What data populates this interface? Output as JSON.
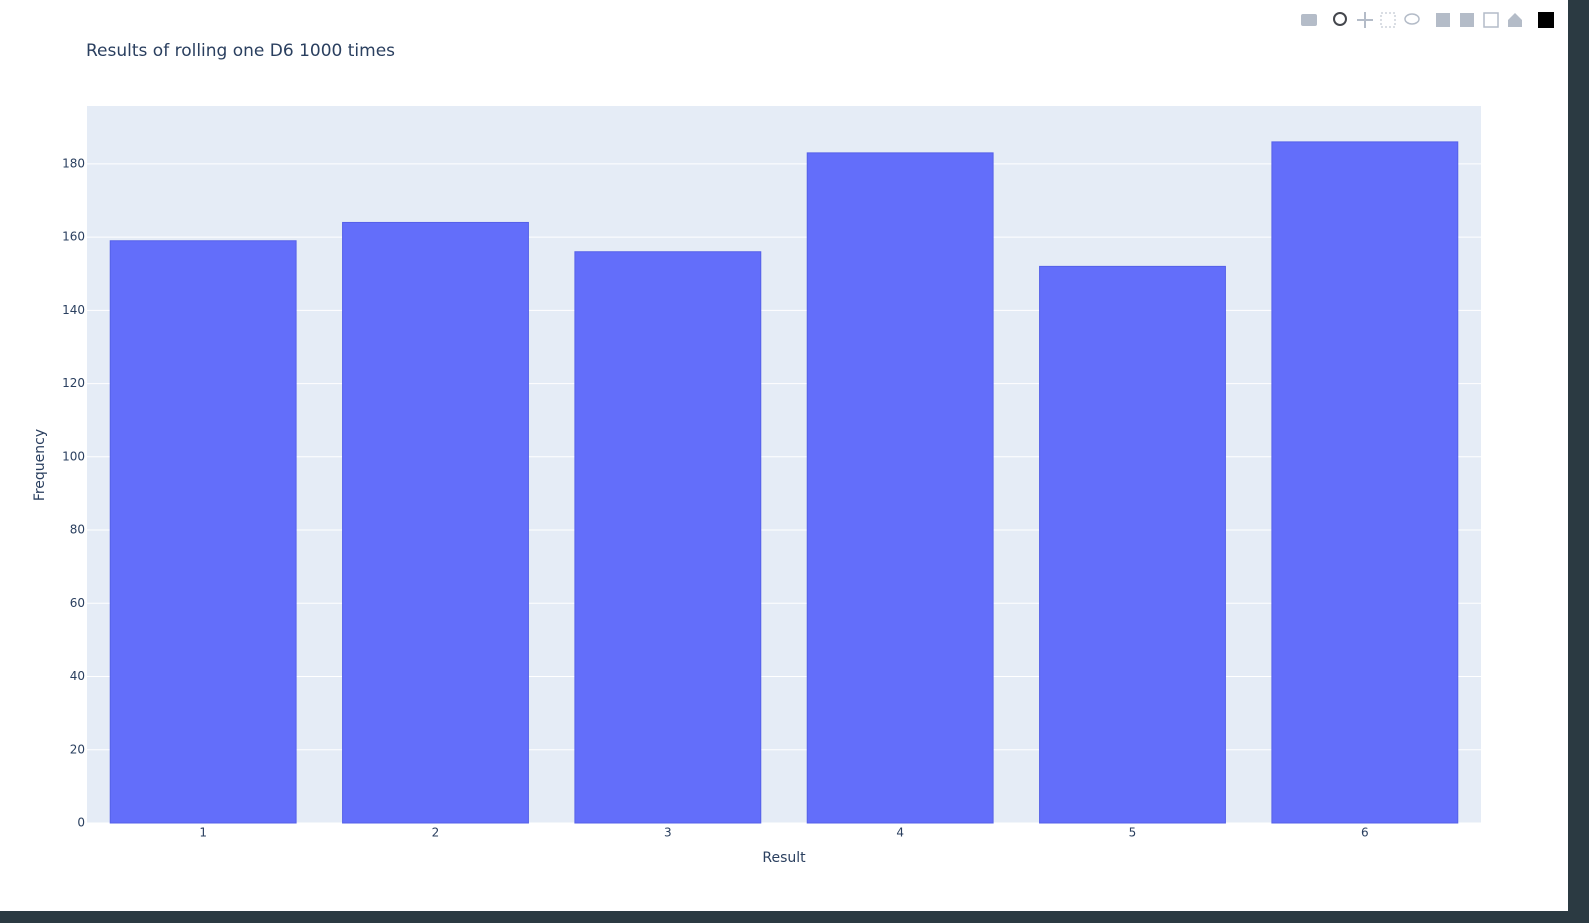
{
  "chart_data": {
    "type": "bar",
    "title": "Results of rolling one D6 1000 times",
    "x_label": "Result",
    "y_label": "Frequency",
    "categories": [
      "1",
      "2",
      "3",
      "4",
      "5",
      "6"
    ],
    "values": [
      159,
      164,
      156,
      183,
      152,
      186
    ],
    "color": "#636efa",
    "ylim": [
      0,
      195.8
    ],
    "yticks": [
      0,
      20,
      40,
      60,
      80,
      100,
      120,
      140,
      160,
      180
    ],
    "grid": true
  }
}
